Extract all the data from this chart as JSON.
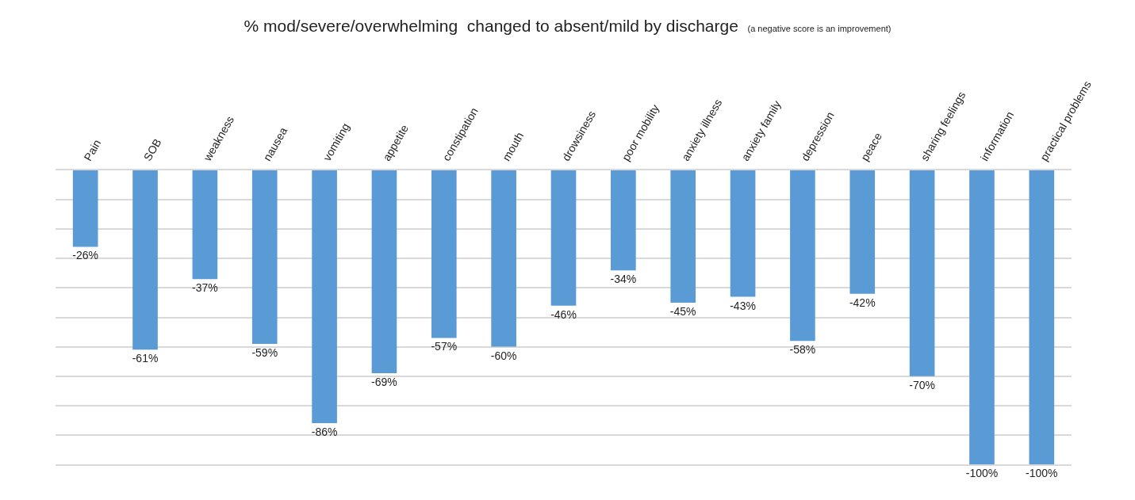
{
  "chart_data": {
    "type": "bar",
    "title": "% mod/severe/overwhelming  changed to absent/mild by discharge",
    "subtitle": "(a negative score is an improvement)",
    "categories": [
      "Pain",
      "SOB",
      "weakness",
      "nausea",
      "vomiting",
      "appetite",
      "constipation",
      "mouth",
      "drowsiness",
      "poor mobility",
      "anxiety illness",
      "anxiety family",
      "depression",
      "peace",
      "sharing feelings",
      "information",
      "practical problems"
    ],
    "values": [
      -26,
      -61,
      -37,
      -59,
      -86,
      -69,
      -57,
      -60,
      -46,
      -34,
      -45,
      -43,
      -58,
      -42,
      -70,
      -100,
      -100
    ],
    "value_labels": [
      "-26%",
      "-61%",
      "-37%",
      "-59%",
      "-86%",
      "-69%",
      "-57%",
      "-60%",
      "-46%",
      "-34%",
      "-45%",
      "-43%",
      "-58%",
      "-42%",
      "-70%",
      "-100%",
      "-100%"
    ],
    "color": "#5b9bd5",
    "ylim": [
      -100,
      0
    ],
    "yticks": [
      {
        "value": -10,
        "label": null
      },
      {
        "value": -20,
        "label": null
      },
      {
        "value": -30,
        "label": null
      },
      {
        "value": -40,
        "label": null
      },
      {
        "value": -50,
        "label": null
      },
      {
        "value": -60,
        "label": null
      },
      {
        "value": -70,
        "label": null
      },
      {
        "value": -80,
        "label": null
      },
      {
        "value": -90,
        "label": null
      }
    ],
    "grid": "y",
    "tick_labels": "x"
  }
}
